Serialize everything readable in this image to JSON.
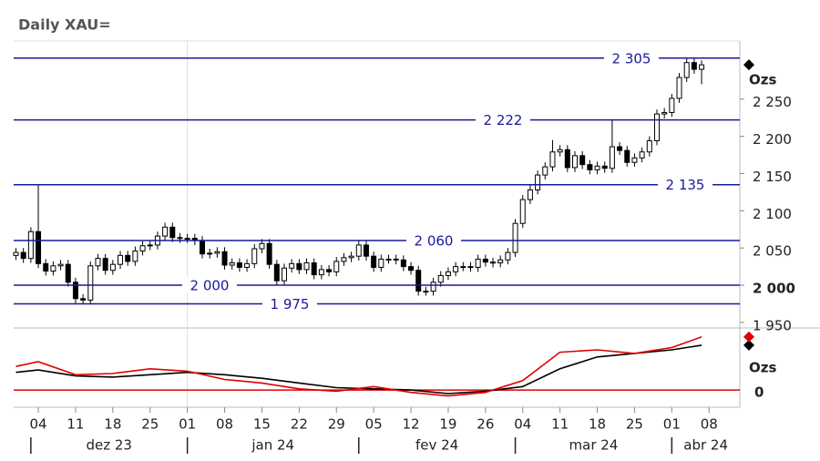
{
  "chart_data": [
    {
      "type": "candlestick",
      "title": "Daily XAU=",
      "y_label": "Ozs",
      "x": [
        "2023-11-29",
        "2023-11-30",
        "2023-12-01",
        "2023-12-04",
        "2023-12-05",
        "2023-12-06",
        "2023-12-07",
        "2023-12-08",
        "2023-12-11",
        "2023-12-12",
        "2023-12-13",
        "2023-12-14",
        "2023-12-15",
        "2023-12-18",
        "2023-12-19",
        "2023-12-20",
        "2023-12-21",
        "2023-12-22",
        "2023-12-25",
        "2023-12-26",
        "2023-12-27",
        "2023-12-28",
        "2023-12-29",
        "2024-01-01",
        "2024-01-02",
        "2024-01-03",
        "2024-01-04",
        "2024-01-05",
        "2024-01-08",
        "2024-01-09",
        "2024-01-10",
        "2024-01-11",
        "2024-01-12",
        "2024-01-15",
        "2024-01-16",
        "2024-01-17",
        "2024-01-18",
        "2024-01-19",
        "2024-01-22",
        "2024-01-23",
        "2024-01-24",
        "2024-01-25",
        "2024-01-26",
        "2024-01-29",
        "2024-01-30",
        "2024-01-31",
        "2024-02-01",
        "2024-02-02",
        "2024-02-05",
        "2024-02-06",
        "2024-02-07",
        "2024-02-08",
        "2024-02-09",
        "2024-02-12",
        "2024-02-13",
        "2024-02-14",
        "2024-02-15",
        "2024-02-16",
        "2024-02-19",
        "2024-02-20",
        "2024-02-21",
        "2024-02-22",
        "2024-02-23",
        "2024-02-26",
        "2024-02-27",
        "2024-02-28",
        "2024-02-29",
        "2024-03-01",
        "2024-03-04",
        "2024-03-05",
        "2024-03-06",
        "2024-03-07",
        "2024-03-08",
        "2024-03-11",
        "2024-03-12",
        "2024-03-13",
        "2024-03-14",
        "2024-03-15",
        "2024-03-18",
        "2024-03-19",
        "2024-03-20",
        "2024-03-21",
        "2024-03-22",
        "2024-03-25",
        "2024-03-26",
        "2024-03-27",
        "2024-03-28",
        "2024-03-29",
        "2024-04-01",
        "2024-04-02",
        "2024-04-03",
        "2024-04-04",
        "2024-04-05"
      ],
      "series": [
        {
          "color": "#000000",
          "open": [
            2040,
            2044,
            2036,
            2072,
            2029,
            2019,
            2026,
            2028,
            2004,
            1982,
            1980,
            2026,
            2036,
            2020,
            2028,
            2040,
            2032,
            2046,
            2053,
            2054,
            2066,
            2078,
            2064,
            2063,
            2063,
            2060,
            2042,
            2043,
            2045,
            2027,
            2030,
            2024,
            2029,
            2049,
            2056,
            2028,
            2006,
            2023,
            2029,
            2021,
            2030,
            2014,
            2021,
            2018,
            2032,
            2037,
            2039,
            2054,
            2039,
            2024,
            2035,
            2035,
            2034,
            2025,
            2020,
            1992,
            1992,
            2004,
            2013,
            2018,
            2025,
            2025,
            2024,
            2035,
            2031,
            2030,
            2034,
            2044,
            2083,
            2115,
            2128,
            2148,
            2159,
            2179,
            2182,
            2158,
            2174,
            2162,
            2155,
            2160,
            2157,
            2186,
            2181,
            2165,
            2171,
            2179,
            2194,
            2230,
            2232,
            2251,
            2279,
            2299,
            2290
          ],
          "high": [
            2050,
            2050,
            2078,
            2135,
            2035,
            2032,
            2034,
            2034,
            2010,
            1988,
            2032,
            2042,
            2042,
            2034,
            2046,
            2046,
            2052,
            2059,
            2060,
            2072,
            2084,
            2084,
            2070,
            2069,
            2069,
            2066,
            2049,
            2051,
            2051,
            2036,
            2036,
            2035,
            2055,
            2062,
            2062,
            2034,
            2029,
            2035,
            2035,
            2036,
            2036,
            2027,
            2027,
            2038,
            2043,
            2045,
            2060,
            2060,
            2045,
            2041,
            2041,
            2041,
            2040,
            2031,
            2026,
            1998,
            2010,
            2019,
            2024,
            2031,
            2031,
            2031,
            2041,
            2041,
            2037,
            2040,
            2050,
            2089,
            2121,
            2134,
            2154,
            2165,
            2195,
            2188,
            2188,
            2180,
            2180,
            2168,
            2166,
            2166,
            2222,
            2192,
            2187,
            2177,
            2185,
            2200,
            2236,
            2238,
            2257,
            2285,
            2305,
            2305,
            2302
          ],
          "low": [
            2034,
            2030,
            2030,
            2023,
            2013,
            2013,
            2020,
            1998,
            1976,
            1974,
            1974,
            2020,
            2014,
            2014,
            2022,
            2026,
            2026,
            2040,
            2047,
            2048,
            2060,
            2058,
            2057,
            2057,
            2054,
            2036,
            2036,
            2037,
            2021,
            2021,
            2018,
            2018,
            2023,
            2043,
            2022,
            2000,
            2000,
            2017,
            2015,
            2015,
            2008,
            2008,
            2012,
            2012,
            2026,
            2031,
            2033,
            2033,
            2018,
            2018,
            2029,
            2028,
            2019,
            2014,
            1986,
            1986,
            1986,
            1998,
            2007,
            2012,
            2019,
            2018,
            2018,
            2025,
            2024,
            2024,
            2028,
            2038,
            2077,
            2109,
            2122,
            2142,
            2153,
            2173,
            2152,
            2152,
            2156,
            2149,
            2149,
            2151,
            2151,
            2175,
            2159,
            2159,
            2165,
            2173,
            2188,
            2224,
            2226,
            2245,
            2273,
            2284,
            2270
          ],
          "close": [
            2044,
            2036,
            2072,
            2029,
            2019,
            2026,
            2028,
            2004,
            1982,
            1980,
            2026,
            2036,
            2020,
            2028,
            2040,
            2032,
            2046,
            2053,
            2054,
            2066,
            2078,
            2064,
            2063,
            2063,
            2060,
            2042,
            2043,
            2045,
            2027,
            2030,
            2024,
            2029,
            2049,
            2056,
            2028,
            2006,
            2023,
            2029,
            2021,
            2030,
            2014,
            2021,
            2018,
            2032,
            2037,
            2039,
            2054,
            2039,
            2024,
            2035,
            2035,
            2034,
            2025,
            2020,
            1992,
            1992,
            2004,
            2013,
            2018,
            2025,
            2025,
            2024,
            2035,
            2031,
            2030,
            2034,
            2044,
            2083,
            2115,
            2128,
            2148,
            2159,
            2179,
            2182,
            2158,
            2174,
            2162,
            2155,
            2160,
            2157,
            2186,
            2181,
            2165,
            2171,
            2179,
            2194,
            2230,
            2232,
            2251,
            2279,
            2299,
            2290,
            2296
          ]
        }
      ],
      "ylim": [
        1945,
        2328
      ],
      "yticks": [
        {
          "value": 1950,
          "label": "1 950"
        },
        {
          "value": 2000,
          "label": "2 000",
          "bold": true
        },
        {
          "value": 2050,
          "label": "2 050"
        },
        {
          "value": 2100,
          "label": "2 100"
        },
        {
          "value": 2150,
          "label": "2 150"
        },
        {
          "value": 2200,
          "label": "2 200"
        },
        {
          "value": 2250,
          "label": "2 250"
        }
      ],
      "levels": [
        {
          "value": 2305,
          "label": "2 305"
        },
        {
          "value": 2222,
          "label": "2 222"
        },
        {
          "value": 2135,
          "label": "2 135"
        },
        {
          "value": 2060,
          "label": "2 060"
        },
        {
          "value": 2000,
          "label": "2 000"
        },
        {
          "value": 1975,
          "label": "1 975"
        }
      ],
      "level_color": "#1a1a9a",
      "xticks": [
        {
          "value": "2023-12-04",
          "label": "04"
        },
        {
          "value": "2023-12-11",
          "label": "11"
        },
        {
          "value": "2023-12-18",
          "label": "18"
        },
        {
          "value": "2023-12-25",
          "label": "25"
        },
        {
          "value": "2024-01-01",
          "label": "01"
        },
        {
          "value": "2024-01-08",
          "label": "08"
        },
        {
          "value": "2024-01-15",
          "label": "15"
        },
        {
          "value": "2024-01-22",
          "label": "22"
        },
        {
          "value": "2024-01-29",
          "label": "29"
        },
        {
          "value": "2024-02-05",
          "label": "05"
        },
        {
          "value": "2024-02-12",
          "label": "12"
        },
        {
          "value": "2024-02-19",
          "label": "19"
        },
        {
          "value": "2024-02-26",
          "label": "26"
        },
        {
          "value": "2024-03-04",
          "label": "04"
        },
        {
          "value": "2024-03-11",
          "label": "11"
        },
        {
          "value": "2024-03-18",
          "label": "18"
        },
        {
          "value": "2024-03-25",
          "label": "25"
        },
        {
          "value": "2024-04-01",
          "label": "01"
        },
        {
          "value": "2024-04-08",
          "label": "08"
        }
      ],
      "month_ticks": [
        {
          "value": "2023-12-01",
          "label": "dez 23"
        },
        {
          "value": "2024-01-01",
          "label": "jan 24"
        },
        {
          "value": "2024-02-01",
          "label": "fev 24"
        },
        {
          "value": "2024-03-01",
          "label": "mar 24"
        },
        {
          "value": "2024-04-01",
          "label": "abr 24"
        }
      ]
    },
    {
      "type": "line",
      "y_label": "Ozs",
      "x": [
        "2023-11-29",
        "2023-12-04",
        "2023-12-11",
        "2023-12-18",
        "2023-12-25",
        "2024-01-01",
        "2024-01-08",
        "2024-01-15",
        "2024-01-22",
        "2024-01-29",
        "2024-02-05",
        "2024-02-12",
        "2024-02-19",
        "2024-02-26",
        "2024-03-04",
        "2024-03-11",
        "2024-03-18",
        "2024-03-25",
        "2024-04-01",
        "2024-04-05"
      ],
      "series": [
        {
          "color": "#000000",
          "values": [
            15,
            17,
            12,
            11,
            13,
            15,
            13,
            10,
            6,
            2,
            1,
            0,
            -3,
            -1,
            3,
            18,
            28,
            31,
            34,
            38
          ]
        },
        {
          "color": "#e00000",
          "values": [
            20,
            24,
            13,
            14,
            18,
            16,
            9,
            6,
            1,
            -1,
            3,
            -2,
            -5,
            -2,
            8,
            32,
            34,
            31,
            36,
            45
          ]
        }
      ],
      "ylim": [
        -13,
        51
      ],
      "yticks": [
        0
      ],
      "grid": true,
      "grid_color": "#e00000"
    }
  ]
}
